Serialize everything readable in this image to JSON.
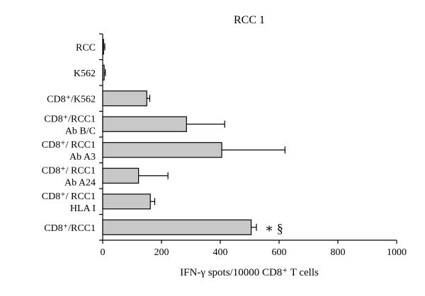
{
  "chart_data": {
    "type": "bar",
    "orientation": "horizontal",
    "title": "RCC 1",
    "xlabel": "IFN-γ spots/10000 CD8⁺ T cells",
    "ylabel": "",
    "xlim": [
      0,
      1000
    ],
    "x_ticks": [
      0,
      200,
      400,
      600,
      800,
      1000
    ],
    "categories": [
      [
        "RCC"
      ],
      [
        "K562"
      ],
      [
        "CD8⁺/K562"
      ],
      [
        "CD8⁺/RCC1",
        "Ab B/C"
      ],
      [
        "CD8⁺/ RCC1",
        "Ab A3"
      ],
      [
        "CD8⁺/ RCC1",
        "Ab A24"
      ],
      [
        "CD8⁺/ RCC1",
        "HLA I"
      ],
      [
        "CD8⁺/RCC1"
      ]
    ],
    "values": [
      3,
      5,
      150,
      285,
      405,
      122,
      162,
      505
    ],
    "errors": [
      4,
      4,
      10,
      130,
      215,
      100,
      15,
      18
    ],
    "annotations": [
      {
        "category_index": 7,
        "text": "∗ §"
      }
    ],
    "bar_color": "#c8c8c8",
    "grid": false,
    "legend": "none"
  }
}
